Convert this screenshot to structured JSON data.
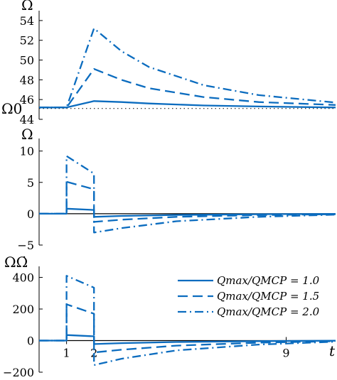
{
  "colors": {
    "series": "#0b6cbf",
    "axes": "#000000",
    "reference": "#000000"
  },
  "chart_data": [
    {
      "type": "line",
      "ylabel": "Ω",
      "ylim": [
        44,
        55
      ],
      "xlim": [
        0,
        10.8
      ],
      "yticks": [
        "44",
        "46",
        "48",
        "50",
        "52",
        "54"
      ],
      "ytick_values": [
        44,
        46,
        48,
        50,
        52,
        54
      ],
      "annotations": [
        "Ω0"
      ],
      "reference_line": {
        "label": "Ω0",
        "value": 45.1,
        "style": "dotted"
      },
      "series": [
        {
          "style": "solid",
          "points": [
            [
              0,
              45.2
            ],
            [
              1,
              45.2
            ],
            [
              2,
              45.85
            ],
            [
              3,
              45.75
            ],
            [
              4,
              45.6
            ],
            [
              6,
              45.4
            ],
            [
              8,
              45.3
            ],
            [
              10.8,
              45.2
            ]
          ]
        },
        {
          "style": "dashed",
          "points": [
            [
              0,
              45.2
            ],
            [
              1,
              45.2
            ],
            [
              2,
              49.1
            ],
            [
              3,
              48.0
            ],
            [
              4,
              47.15
            ],
            [
              6,
              46.25
            ],
            [
              8,
              45.75
            ],
            [
              10.8,
              45.45
            ]
          ]
        },
        {
          "style": "dashdot",
          "points": [
            [
              0,
              45.2
            ],
            [
              1,
              45.2
            ],
            [
              2,
              53.2
            ],
            [
              3,
              50.9
            ],
            [
              4,
              49.3
            ],
            [
              6,
              47.45
            ],
            [
              8,
              46.45
            ],
            [
              10.8,
              45.7
            ]
          ]
        }
      ]
    },
    {
      "type": "line",
      "ylabel": "Ω",
      "ylim": [
        -5,
        12
      ],
      "xlim": [
        0,
        10.8
      ],
      "yticks": [
        "−5",
        "0",
        "5",
        "10"
      ],
      "ytick_values": [
        -5,
        0,
        5,
        10
      ],
      "series": [
        {
          "style": "solid",
          "points": [
            [
              0,
              0
            ],
            [
              1,
              0
            ],
            [
              1,
              0.8
            ],
            [
              2,
              0.6
            ],
            [
              2,
              -0.5
            ],
            [
              3,
              -0.35
            ],
            [
              5,
              -0.2
            ],
            [
              8,
              -0.08
            ],
            [
              10.8,
              -0.03
            ]
          ]
        },
        {
          "style": "dashed",
          "points": [
            [
              0,
              0
            ],
            [
              1,
              0
            ],
            [
              1,
              5.1
            ],
            [
              2,
              3.9
            ],
            [
              2,
              -1.3
            ],
            [
              3,
              -0.95
            ],
            [
              5,
              -0.5
            ],
            [
              8,
              -0.22
            ],
            [
              10.8,
              -0.08
            ]
          ]
        },
        {
          "style": "dashdot",
          "points": [
            [
              0,
              0
            ],
            [
              1,
              0
            ],
            [
              1,
              9.2
            ],
            [
              2,
              6.4
            ],
            [
              2,
              -3.0
            ],
            [
              3,
              -2.3
            ],
            [
              5,
              -1.2
            ],
            [
              8,
              -0.5
            ],
            [
              10.8,
              -0.15
            ]
          ]
        }
      ]
    },
    {
      "type": "line",
      "ylabel": "ΩΩ̇",
      "ylim": [
        -200,
        470
      ],
      "xlim": [
        0,
        10.8
      ],
      "yticks": [
        "−200",
        "0",
        "200",
        "400"
      ],
      "ytick_values": [
        -200,
        0,
        200,
        400
      ],
      "xlabel": "t",
      "xticks": [
        "1",
        "2",
        "9"
      ],
      "xtick_values": [
        1,
        2,
        9
      ],
      "legend": {
        "position": "center-right",
        "entries": [
          {
            "style": "solid",
            "label": "Qmax/QMCP = 1.0"
          },
          {
            "style": "dashed",
            "label": "Qmax/QMCP = 1.5"
          },
          {
            "style": "dashdot",
            "label": "Qmax/QMCP = 2.0"
          }
        ]
      },
      "series": [
        {
          "style": "solid",
          "points": [
            [
              0,
              0
            ],
            [
              1,
              0
            ],
            [
              1,
              35
            ],
            [
              2,
              27
            ],
            [
              2,
              -22
            ],
            [
              3,
              -16
            ],
            [
              5,
              -9
            ],
            [
              8,
              -3.5
            ],
            [
              10.8,
              -1
            ]
          ]
        },
        {
          "style": "dashed",
          "points": [
            [
              0,
              0
            ],
            [
              1,
              0
            ],
            [
              1,
              230
            ],
            [
              2,
              170
            ],
            [
              2,
              -75
            ],
            [
              3,
              -58
            ],
            [
              5,
              -32
            ],
            [
              8,
              -13
            ],
            [
              10.8,
              -4
            ]
          ]
        },
        {
          "style": "dashdot",
          "points": [
            [
              0,
              0
            ],
            [
              1,
              0
            ],
            [
              1,
              410
            ],
            [
              2,
              335
            ],
            [
              2,
              -155
            ],
            [
              3,
              -115
            ],
            [
              5,
              -62
            ],
            [
              8,
              -25
            ],
            [
              10.8,
              -7
            ]
          ]
        }
      ]
    }
  ]
}
